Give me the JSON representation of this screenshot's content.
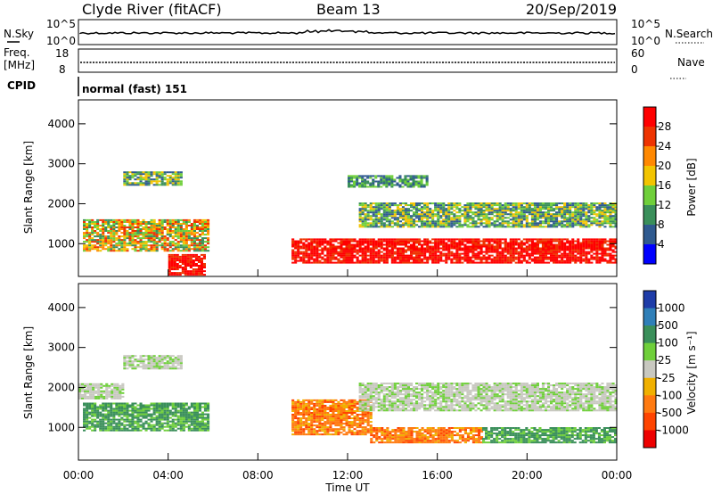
{
  "header": {
    "station": "Clyde River (fitACF)",
    "beam": "Beam 13",
    "date": "20/Sep/2019"
  },
  "noise_panel": {
    "left_label": "N.Sky",
    "right_label": "N.Search",
    "left_ticks": [
      "10^5",
      "10^0"
    ],
    "right_ticks": [
      "10^5",
      "10^0"
    ]
  },
  "freq_panel": {
    "left_label_line1": "Freq.",
    "left_label_line2": "[MHz]",
    "right_label": "Nave",
    "left_ticks": [
      "18",
      "8"
    ],
    "right_ticks": [
      "60",
      "0"
    ]
  },
  "cpid": {
    "label": "CPID",
    "value": "normal (fast) 151"
  },
  "time_axis": {
    "label": "Time UT",
    "ticks": [
      "00:00",
      "04:00",
      "08:00",
      "12:00",
      "16:00",
      "20:00",
      "00:00"
    ]
  },
  "chart_data": [
    {
      "type": "heatmap",
      "name": "power",
      "ylabel": "Slant Range [km]",
      "yticks": [
        1000,
        2000,
        3000,
        4000
      ],
      "ylim": [
        180,
        4600
      ],
      "xlim_hours": [
        0,
        24
      ],
      "colorbar": {
        "label": "Power [dB]",
        "ticks": [
          "28",
          "24",
          "20",
          "16",
          "12",
          "8",
          "4"
        ],
        "colors": [
          "#ff0000",
          "#ee3300",
          "#ff8800",
          "#f2c400",
          "#6fcf3a",
          "#3a8f5a",
          "#2f5a8f",
          "#0000ff"
        ]
      },
      "bands": [
        {
          "t0": 0.2,
          "t1": 5.8,
          "r0": 800,
          "r1": 1600,
          "level": "high"
        },
        {
          "t0": 4.0,
          "t1": 5.6,
          "r0": 200,
          "r1": 700,
          "level": "max"
        },
        {
          "t0": 2.0,
          "t1": 4.6,
          "r0": 2450,
          "r1": 2800,
          "level": "mid"
        },
        {
          "t0": 9.5,
          "t1": 24.0,
          "r0": 500,
          "r1": 1100,
          "level": "max"
        },
        {
          "t0": 12.5,
          "t1": 24.0,
          "r0": 1400,
          "r1": 2000,
          "level": "mid"
        },
        {
          "t0": 12.0,
          "t1": 15.5,
          "r0": 2400,
          "r1": 2700,
          "level": "low"
        }
      ]
    },
    {
      "type": "heatmap",
      "name": "velocity",
      "ylabel": "Slant Range [km]",
      "yticks": [
        1000,
        2000,
        3000,
        4000
      ],
      "ylim": [
        180,
        4600
      ],
      "xlim_hours": [
        0,
        24
      ],
      "colorbar": {
        "label": "Velocity [m s⁻¹]",
        "ticks": [
          "1000",
          "500",
          "100",
          "25",
          "-25",
          "-100",
          "-500",
          "-1000"
        ],
        "colors": [
          "#1e3ca8",
          "#2f7fb8",
          "#3a8f5a",
          "#6fcf3a",
          "#c8c8c0",
          "#f0b000",
          "#ff7a10",
          "#ff4400",
          "#ee0000"
        ]
      },
      "bands": [
        {
          "t0": 0.2,
          "t1": 5.8,
          "r0": 900,
          "r1": 1600,
          "level": "green"
        },
        {
          "t0": 0.0,
          "t1": 2.0,
          "r0": 1700,
          "r1": 2100,
          "level": "gray"
        },
        {
          "t0": 2.0,
          "t1": 4.6,
          "r0": 2450,
          "r1": 2800,
          "level": "gray"
        },
        {
          "t0": 9.5,
          "t1": 13.0,
          "r0": 800,
          "r1": 1700,
          "level": "orange"
        },
        {
          "t0": 13.0,
          "t1": 18.0,
          "r0": 600,
          "r1": 1000,
          "level": "orange"
        },
        {
          "t0": 18.0,
          "t1": 24.0,
          "r0": 600,
          "r1": 1000,
          "level": "green"
        },
        {
          "t0": 12.5,
          "t1": 24.0,
          "r0": 1400,
          "r1": 2100,
          "level": "gray"
        }
      ]
    }
  ]
}
